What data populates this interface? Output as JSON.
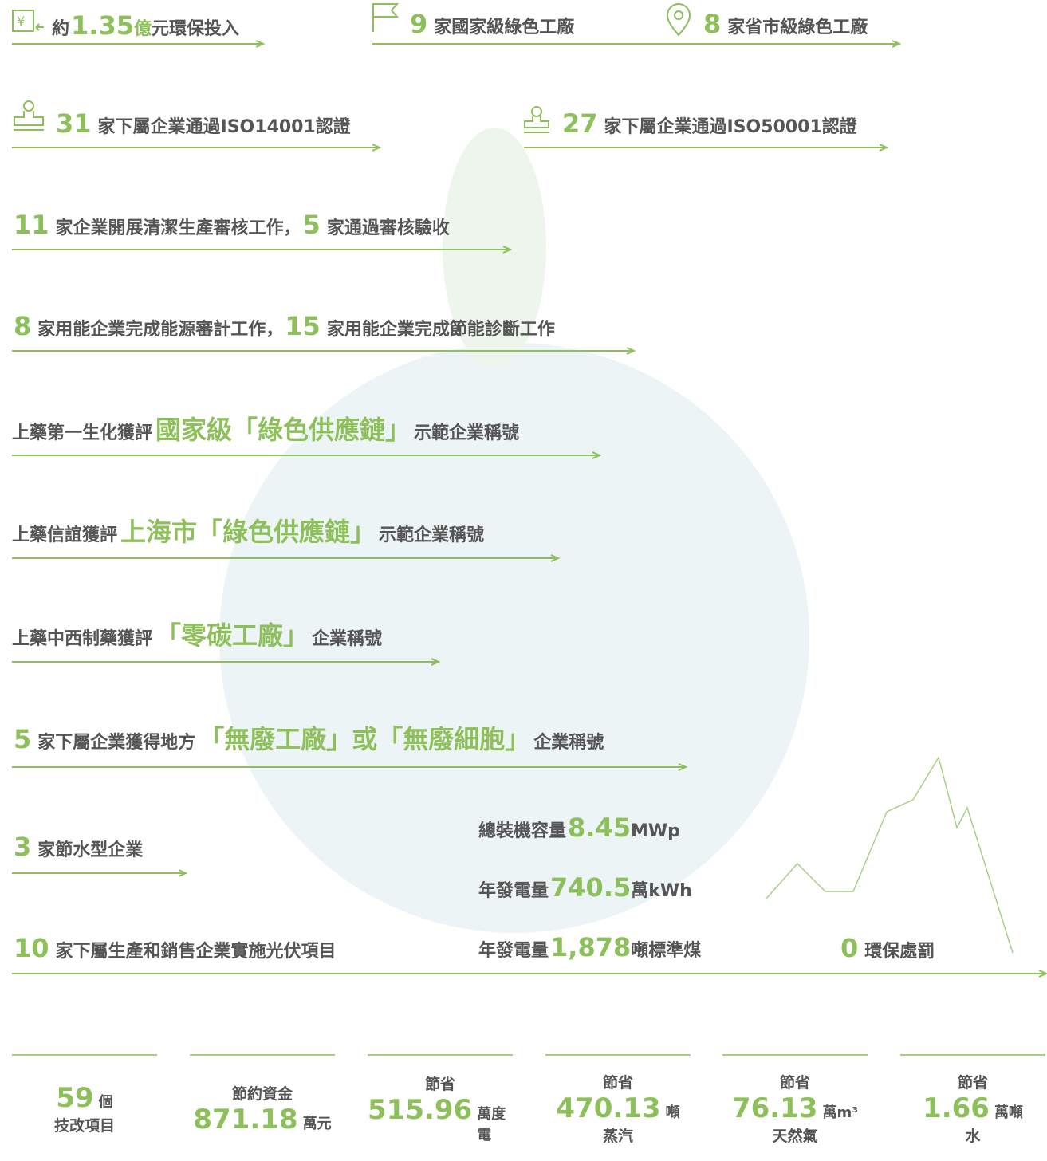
{
  "statements": [
    [
      "約",
      "1.35",
      "億",
      "元環保投入"
    ],
    [
      "9",
      "家國家級綠色工廠"
    ],
    [
      "8",
      "家省市級綠色工廠"
    ],
    [
      "31",
      "家下屬企業通過ISO14001認證"
    ],
    [
      "27",
      "家下屬企業通過ISO50001認證"
    ],
    [
      "11",
      "家企業開展清潔生產審核工作，",
      "5",
      "家通過審核驗收"
    ],
    [
      "8",
      "家用能企業完成能源審計工作，",
      "15",
      "家用能企業完成節能診斷工作"
    ],
    [
      "上藥第一生化獲評",
      "國家級「綠色供應鏈」",
      "示範企業稱號"
    ],
    [
      "上藥信誼獲評",
      "上海市「綠色供應鏈」",
      "示範企業稱號"
    ],
    [
      "上藥中西制藥獲評",
      "「零碳工廠」",
      "企業稱號"
    ],
    [
      "5",
      "家下屬企業獲得地方",
      "「無廢工廠」或「無廢細胞」",
      "企業稱號"
    ],
    [
      "3",
      "家節水型企業"
    ],
    [
      "10",
      "家下屬生產和銷售企業實施光伏項目"
    ],
    [
      "總裝機容量",
      "8.45",
      "MWp"
    ],
    [
      "年發電量",
      "740.5",
      "萬kWh"
    ],
    [
      "年發電量",
      "1,878",
      "噸標準煤"
    ],
    [
      "0",
      "環保處罰"
    ]
  ],
  "stats": [
    {
      "value": "59",
      "unit": "個",
      "caption": "技改項目"
    },
    {
      "label": "節約資金",
      "value": "871.18",
      "unit": "萬元"
    },
    {
      "label": "節省",
      "value": "515.96",
      "unit": "萬度電"
    },
    {
      "label": "節省",
      "value": "470.13",
      "unit": "噸",
      "caption": "蒸汽"
    },
    {
      "label": "節省",
      "value": "76.13",
      "unit": "萬m³",
      "caption": "天然氣"
    },
    {
      "label": "節省",
      "value": "1.66",
      "unit": "萬噸",
      "caption": "水"
    }
  ]
}
